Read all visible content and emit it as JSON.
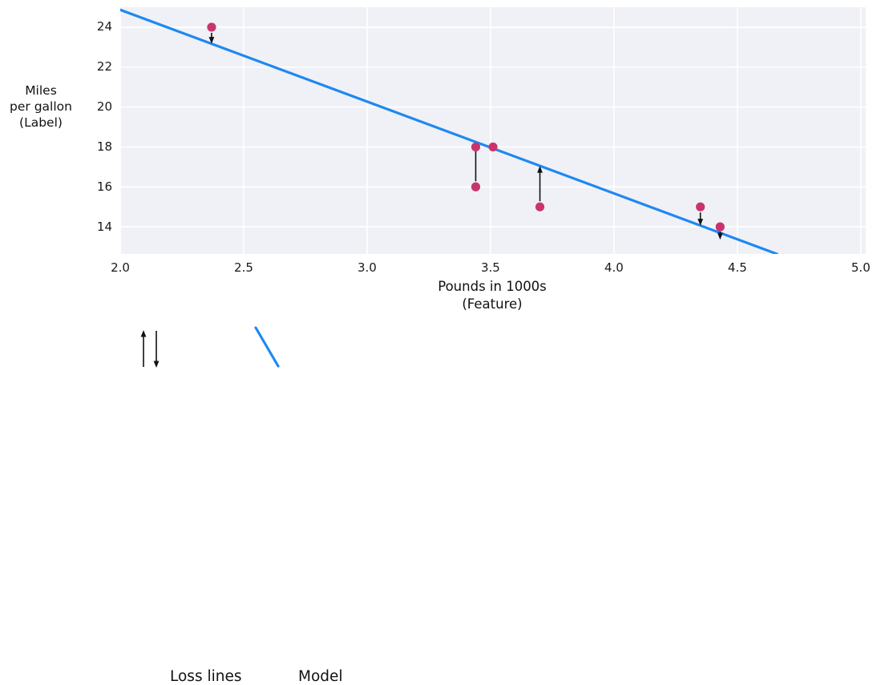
{
  "chart_data": {
    "type": "scatter",
    "title": "",
    "xlabel_lines": [
      "Pounds in 1000s",
      "(Feature)"
    ],
    "ylabel_lines": [
      "Miles",
      "per gallon",
      "(Label)"
    ],
    "xlim": [
      2.0,
      5.02
    ],
    "ylim": [
      12.64,
      25.0
    ],
    "x_ticks": [
      2.0,
      2.5,
      3.0,
      3.5,
      4.0,
      4.5,
      5.0
    ],
    "x_tick_labels": [
      "2.0",
      "2.5",
      "3.0",
      "3.5",
      "4.0",
      "4.5",
      "5.0"
    ],
    "y_ticks": [
      24,
      22,
      20,
      18,
      16,
      14
    ],
    "y_tick_labels": [
      "24",
      "22",
      "20",
      "18",
      "16",
      "14"
    ],
    "grid": true,
    "points": [
      [
        2.37,
        24
      ],
      [
        3.44,
        18
      ],
      [
        3.51,
        18
      ],
      [
        3.44,
        16
      ],
      [
        3.7,
        15
      ],
      [
        4.35,
        15
      ],
      [
        4.43,
        14
      ]
    ],
    "model_line": {
      "x1": 2.0,
      "y1": 24.87,
      "x2": 4.66,
      "y2": 12.64,
      "slope": -4.6,
      "intercept": 34.07
    },
    "loss_lines": [
      {
        "x": 2.37,
        "from": 24,
        "to": 23.17,
        "direction": "down"
      },
      {
        "x": 3.44,
        "from": 16,
        "to": 18.25,
        "direction": "up"
      },
      {
        "x": 3.7,
        "from": 15,
        "to": 17.05,
        "direction": "up"
      },
      {
        "x": 4.35,
        "from": 15,
        "to": 14.06,
        "direction": "down"
      },
      {
        "x": 4.43,
        "from": 14,
        "to": 13.69,
        "direction": "down"
      }
    ],
    "legend": {
      "position": "below-chart",
      "loss_label": "Loss lines",
      "model_label": "Model"
    },
    "colors": {
      "model_line": "#1e88f2",
      "point": "#ca336d",
      "loss_arrow": "#111111",
      "plot_background": "#eff1f6",
      "gridline": "#ffffff"
    }
  }
}
